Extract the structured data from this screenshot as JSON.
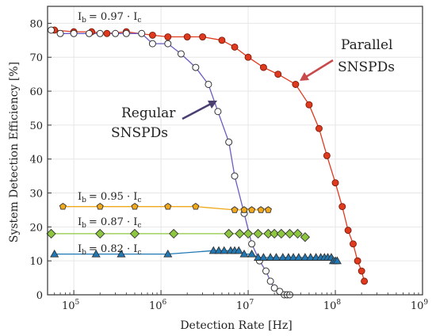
{
  "chart_data": {
    "type": "scatter",
    "title": "",
    "xlabel": "Detection Rate [Hz]",
    "ylabel": "System Detection Efficiency [%]",
    "x_scale": "log",
    "xlim": [
      50000,
      1000000000
    ],
    "ylim": [
      0,
      85
    ],
    "x_ticks": [
      "10^5",
      "10^6",
      "10^7",
      "10^8",
      "10^9"
    ],
    "y_ticks": [
      "0",
      "10",
      "20",
      "30",
      "40",
      "50",
      "60",
      "70",
      "80"
    ],
    "grid": true,
    "series": [
      {
        "name": "Parallel SNSPDs",
        "color": "#e03a1e",
        "marker": "circle-filled",
        "x": [
          60000,
          100000,
          160000,
          240000,
          400000,
          800000,
          1200000,
          2000000,
          3000000,
          5000000,
          7000000,
          10000000,
          15000000,
          22000000,
          35000000,
          50000000,
          65000000,
          80000000,
          100000000,
          120000000,
          140000000,
          160000000,
          180000000,
          200000000,
          215000000
        ],
        "y": [
          78,
          77.5,
          77.5,
          77,
          77.5,
          76.5,
          76,
          76,
          76,
          75,
          73,
          70,
          67,
          65,
          62,
          56,
          49,
          41,
          33,
          26,
          19,
          15,
          10,
          7,
          4
        ]
      },
      {
        "name": "Regular SNSPDs",
        "color": "#6a5cc0",
        "marker": "circle-open",
        "x": [
          55000,
          70000,
          100000,
          150000,
          200000,
          300000,
          400000,
          600000,
          800000,
          1200000,
          1700000,
          2500000,
          3500000,
          4500000,
          6000000,
          7000000,
          9000000,
          11000000,
          13500000,
          16000000,
          18000000,
          20000000,
          23000000,
          26000000,
          28000000,
          30000000
        ],
        "y": [
          78,
          77,
          77,
          77,
          77,
          77,
          77,
          77,
          74,
          74,
          71,
          67,
          62,
          54,
          45,
          35,
          24,
          15,
          10,
          7,
          4,
          2,
          1,
          0,
          0,
          0
        ]
      },
      {
        "name": "0.95",
        "color": "#f0a81c",
        "marker": "pentagon",
        "x": [
          75000,
          200000,
          500000,
          1200000,
          2500000,
          7000000,
          9000000,
          11000000,
          14000000,
          17000000
        ],
        "y": [
          26,
          26,
          26,
          26,
          26,
          25,
          25,
          25,
          25,
          25
        ]
      },
      {
        "name": "0.87",
        "color": "#8dc63f",
        "marker": "diamond",
        "x": [
          55000,
          200000,
          500000,
          1400000,
          6000000,
          8000000,
          10000000,
          13000000,
          17000000,
          20000000,
          24000000,
          30000000,
          37000000,
          45000000
        ],
        "y": [
          18,
          18,
          18,
          18,
          18,
          18,
          18,
          18,
          18,
          18,
          18,
          18,
          18,
          17
        ]
      },
      {
        "name": "0.82",
        "color": "#1f78b4",
        "marker": "triangle",
        "x": [
          60000,
          180000,
          350000,
          1200000,
          4000000,
          4600000,
          5300000,
          6300000,
          7000000,
          7800000,
          9000000,
          11000000,
          13000000,
          15000000,
          18000000,
          21000000,
          25000000,
          29000000,
          33000000,
          38000000,
          45000000,
          52000000,
          60000000,
          68000000,
          75000000,
          82000000,
          90000000,
          95000000,
          100000000,
          105000000
        ],
        "y": [
          12,
          12,
          12,
          12,
          13,
          13,
          13,
          13,
          13,
          13,
          12,
          12,
          11,
          11,
          11,
          11,
          11,
          11,
          11,
          11,
          11,
          11,
          11,
          11,
          11,
          11,
          11,
          10,
          10,
          10
        ]
      }
    ],
    "annotations": {
      "ib_097": "= 0.97 · I",
      "ib_095": "= 0.95 · I",
      "ib_087": "= 0.87 · I",
      "ib_082": "= 0.82 · I",
      "sub_b": "b",
      "sub_c": "c",
      "I": "I",
      "regular_line1": "Regular",
      "regular_line2": "SNSPDs",
      "parallel_line1": "Parallel",
      "parallel_line2": "SNSPDs"
    }
  }
}
